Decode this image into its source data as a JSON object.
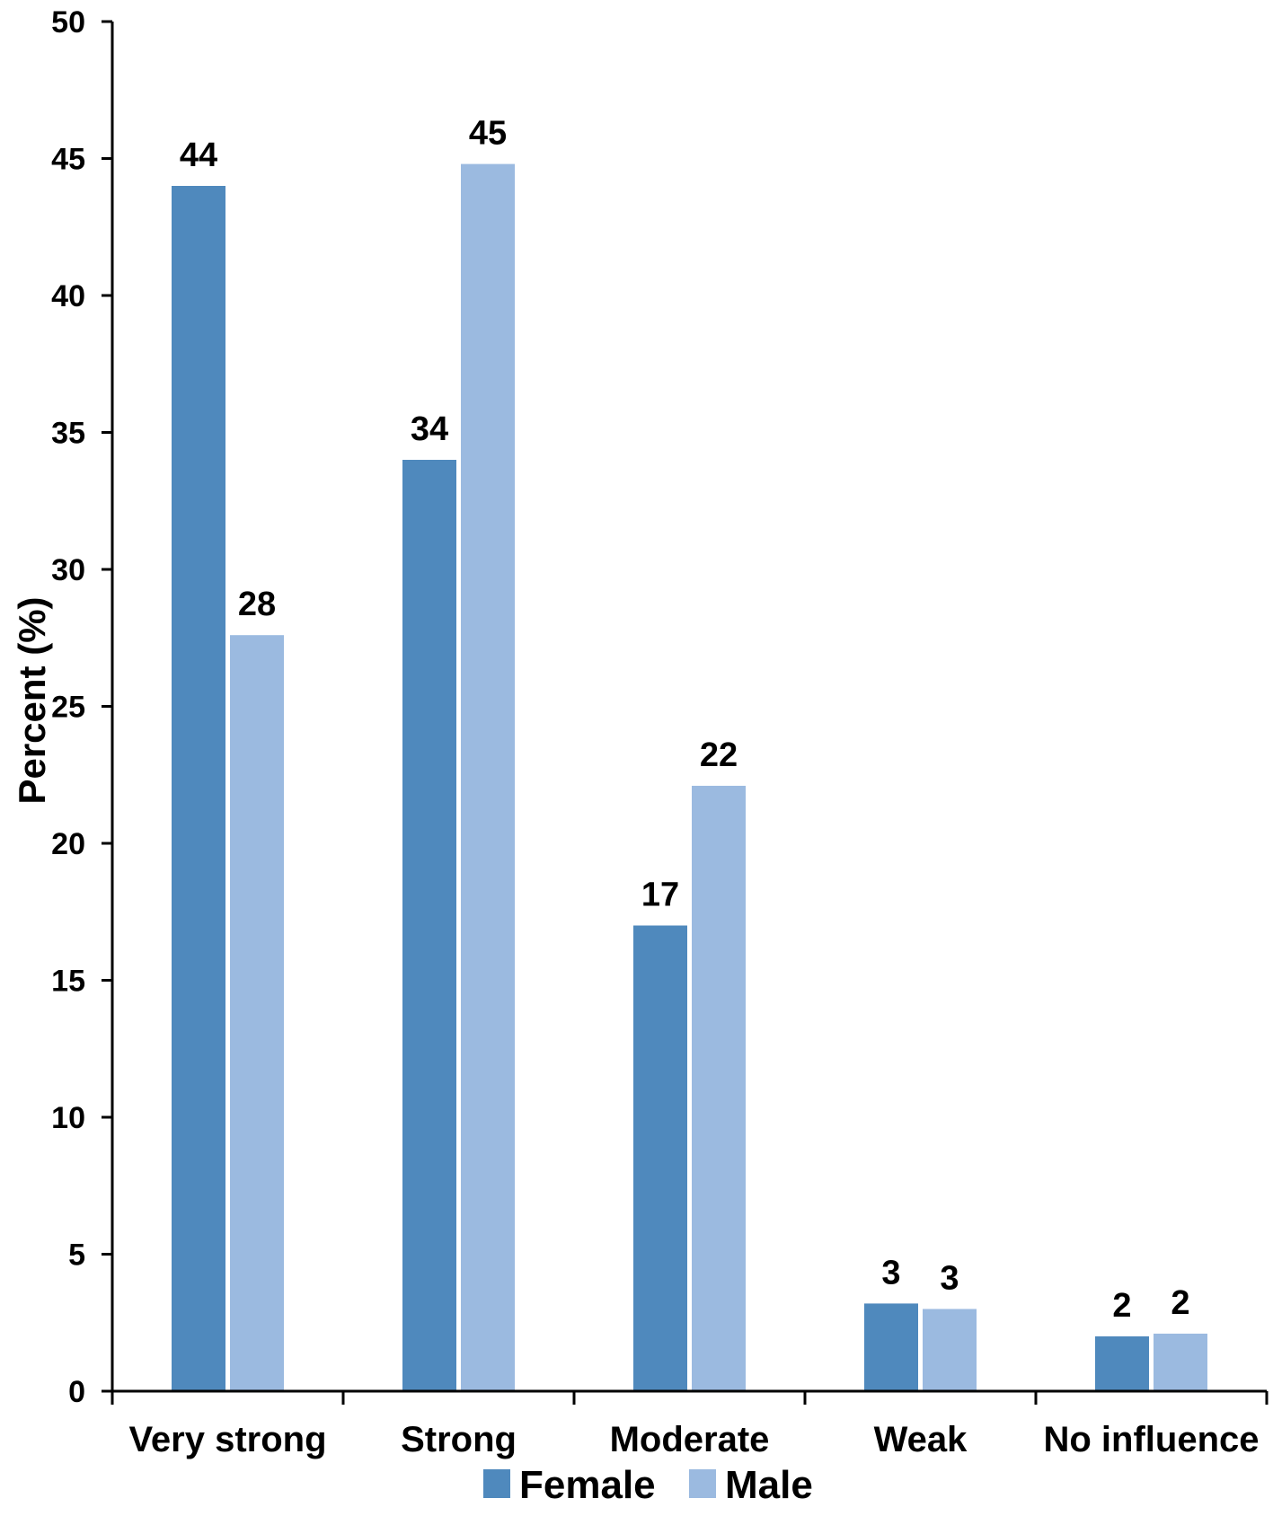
{
  "chart_data": {
    "type": "bar",
    "title": "",
    "xlabel": "",
    "ylabel": "Percent (%)",
    "ylim": [
      0,
      50
    ],
    "yticks": [
      0,
      5,
      10,
      15,
      20,
      25,
      30,
      35,
      40,
      45,
      50
    ],
    "categories": [
      "Very strong",
      "Strong",
      "Moderate",
      "Weak",
      "No influence"
    ],
    "series": [
      {
        "name": "Female",
        "color": "#4f89bd",
        "values": [
          44,
          34,
          17,
          3.2,
          2
        ],
        "labels": [
          "44",
          "34",
          "17",
          "3",
          "2"
        ]
      },
      {
        "name": "Male",
        "color": "#9bbae0",
        "values": [
          27.6,
          44.8,
          22.1,
          3,
          2.1
        ],
        "labels": [
          "28",
          "45",
          "22",
          "3",
          "2"
        ]
      }
    ],
    "grid": false,
    "legend_position": "bottom"
  }
}
